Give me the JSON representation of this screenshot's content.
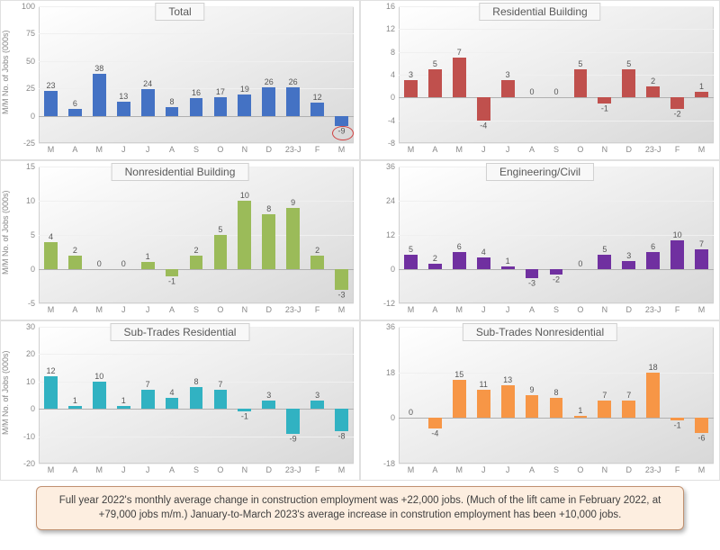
{
  "ylabel": "M/M No. of Jobs (000s)",
  "categories": [
    "M",
    "A",
    "M",
    "J",
    "J",
    "A",
    "S",
    "O",
    "N",
    "D",
    "23-J",
    "F",
    "M"
  ],
  "charts": [
    {
      "title": "Total",
      "color": "#4472c4",
      "values": [
        23,
        6,
        38,
        13,
        24,
        8,
        16,
        17,
        19,
        26,
        26,
        12,
        -9
      ],
      "ylim": [
        -25,
        100
      ],
      "ystep": 25,
      "circle_last": true
    },
    {
      "title": "Residential Building",
      "color": "#c0504d",
      "values": [
        3,
        5,
        7,
        -4,
        3,
        0,
        0,
        5,
        -1,
        5,
        2,
        -2,
        1
      ],
      "ylim": [
        -8,
        16
      ],
      "ystep": 4
    },
    {
      "title": "Nonresidential Building",
      "color": "#9bbb59",
      "values": [
        4,
        2,
        0,
        0,
        1,
        -1,
        2,
        5,
        10,
        8,
        9,
        2,
        -3
      ],
      "ylim": [
        -5,
        15
      ],
      "ystep": 5
    },
    {
      "title": "Engineering/Civil",
      "color": "#7030a0",
      "values": [
        5,
        2,
        6,
        4,
        1,
        -3,
        -2,
        0,
        5,
        3,
        6,
        10,
        7
      ],
      "ylim": [
        -12,
        36
      ],
      "ystep": 12
    },
    {
      "title": "Sub-Trades Residential",
      "color": "#31b2c2",
      "values": [
        12,
        1,
        10,
        1,
        7,
        4,
        8,
        7,
        -1,
        3,
        -9,
        3,
        -8
      ],
      "ylim": [
        -20,
        30
      ],
      "ystep": 10
    },
    {
      "title": "Sub-Trades Nonresidential",
      "color": "#f79646",
      "values": [
        0,
        -4,
        15,
        11,
        13,
        9,
        8,
        1,
        7,
        7,
        18,
        -1,
        -6
      ],
      "ylim": [
        -18,
        36
      ],
      "ystep": 18
    }
  ],
  "footer": "Full year 2022's monthly average change in construction employment was +22,000 jobs. (Much of the lift came in February 2022, at +79,000 jobs m/m.) January-to-March 2023's average increase in constrution employment has been +10,000 jobs.",
  "label_fontsize": 9,
  "title_fontsize": 12,
  "bar_width_ratio": 0.55
}
